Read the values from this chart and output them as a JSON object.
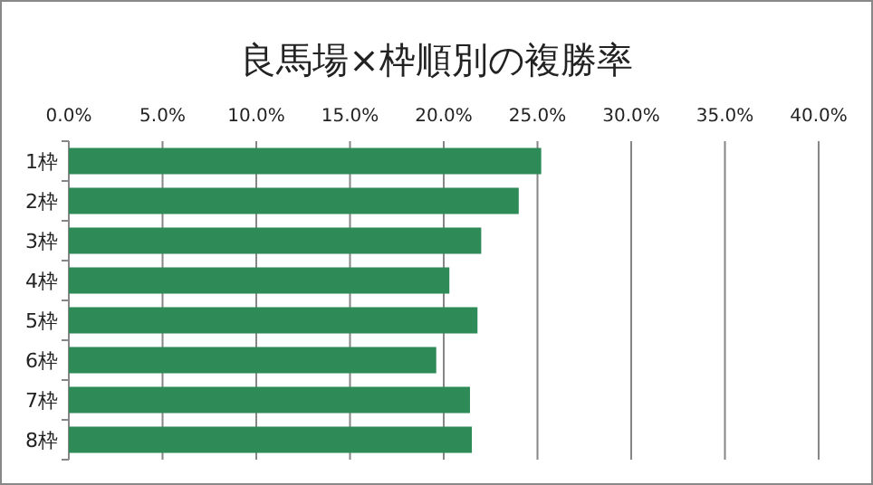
{
  "chart_data": {
    "type": "bar",
    "orientation": "horizontal",
    "title": "良馬場×枠順別の複勝率",
    "categories": [
      "1枠",
      "2枠",
      "3枠",
      "4枠",
      "5枠",
      "6枠",
      "7枠",
      "8枠"
    ],
    "values": [
      25.2,
      24.0,
      22.0,
      20.3,
      21.8,
      19.6,
      21.4,
      21.5
    ],
    "color": "#2e8b57",
    "xlim": [
      0,
      40
    ],
    "xticks": [
      {
        "value": 0,
        "label": "0.0%"
      },
      {
        "value": 5,
        "label": "5.0%"
      },
      {
        "value": 10,
        "label": "10.0%"
      },
      {
        "value": 15,
        "label": "15.0%"
      },
      {
        "value": 20,
        "label": "20.0%"
      },
      {
        "value": 25,
        "label": "25.0%"
      },
      {
        "value": 30,
        "label": "30.0%"
      },
      {
        "value": 35,
        "label": "35.0%"
      },
      {
        "value": 40,
        "label": "40.0%"
      }
    ],
    "grid": "x"
  }
}
